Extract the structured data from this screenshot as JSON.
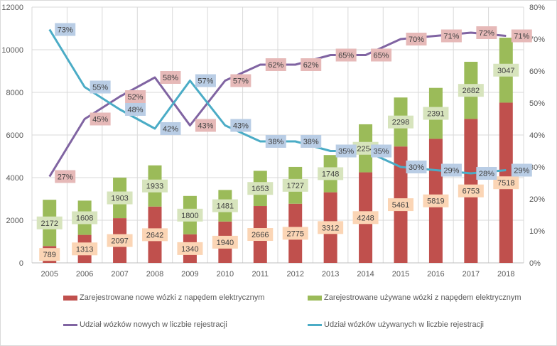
{
  "chart_data": {
    "type": "bar",
    "stacked": true,
    "categories": [
      "2005",
      "2006",
      "2007",
      "2008",
      "2009",
      "2010",
      "2011",
      "2012",
      "2013",
      "2014",
      "2015",
      "2016",
      "2017",
      "2018"
    ],
    "series": [
      {
        "name": "Zarejestrowane nowe wózki z napędem elektrycznym",
        "type": "bar",
        "axis": "left",
        "color": "#c0504d",
        "label_bg": "#fbd5b5",
        "values": [
          789,
          1313,
          2097,
          2642,
          1340,
          1940,
          2666,
          2775,
          3312,
          4248,
          5461,
          5819,
          6753,
          7518
        ]
      },
      {
        "name": "Zarejestrowane używane wózki z napędem elektrycznym",
        "type": "bar",
        "axis": "left",
        "color": "#9bbb59",
        "label_bg": "#d7e4bd",
        "values": [
          2172,
          1608,
          1903,
          1933,
          1800,
          1481,
          1653,
          1727,
          1748,
          2254,
          2298,
          2391,
          2682,
          3047
        ]
      },
      {
        "name": "Udział wózków nowych w liczbie rejestracji",
        "type": "line",
        "axis": "right",
        "color": "#8064a2",
        "label_bg": "#e6b9b8",
        "values": [
          27,
          45,
          52,
          58,
          43,
          57,
          62,
          62,
          65,
          65,
          70,
          71,
          72,
          71
        ]
      },
      {
        "name": "Udział wózków używanych w liczbie rejestracji",
        "type": "line",
        "axis": "right",
        "color": "#4bacc6",
        "label_bg": "#b9cde5",
        "values": [
          73,
          55,
          48,
          42,
          57,
          43,
          38,
          38,
          35,
          35,
          30,
          29,
          28,
          29
        ]
      }
    ],
    "y_left": {
      "min": 0,
      "max": 12000,
      "ticks": [
        "0",
        "2000",
        "4000",
        "6000",
        "8000",
        "10000",
        "12000"
      ]
    },
    "y_right": {
      "min": 0,
      "max": 80,
      "ticks": [
        "0%",
        "10%",
        "20%",
        "30%",
        "40%",
        "50%",
        "60%",
        "70%",
        "80%"
      ]
    },
    "grid": true,
    "legend_position": "bottom"
  }
}
